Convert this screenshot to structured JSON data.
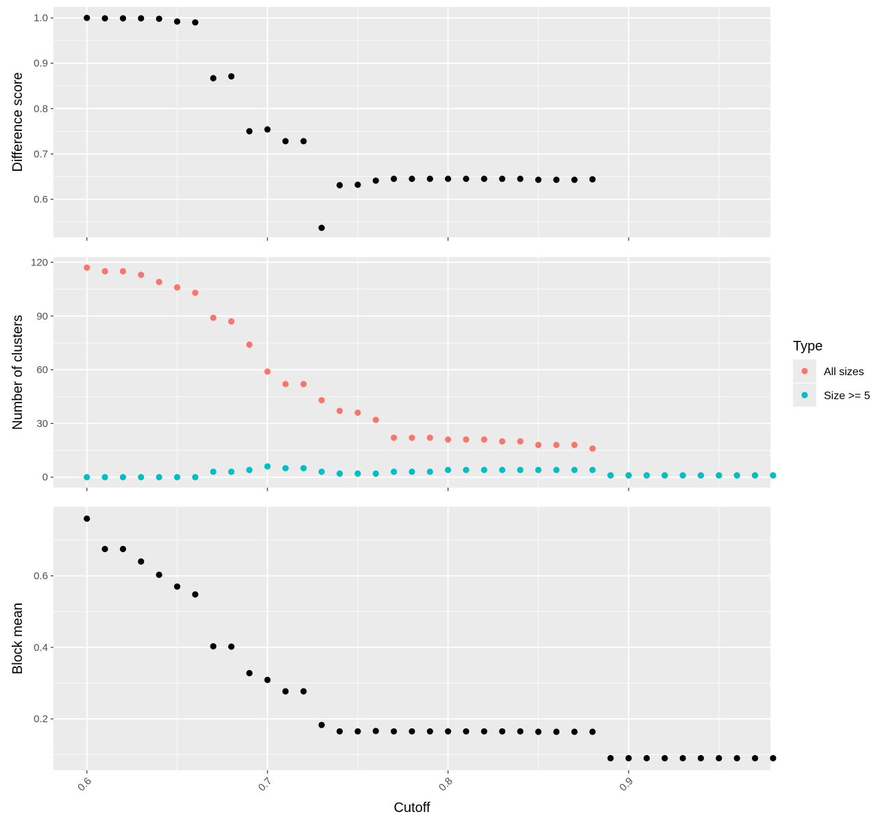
{
  "colors": {
    "panel_bg": "#EBEBEB",
    "grid": "#FFFFFF",
    "tick_text": "#4D4D4D",
    "axis_title": "#000000",
    "point_black": "#000000",
    "all_sizes": "#F8766D",
    "size_ge_5": "#00BFC4"
  },
  "chart_data": [
    {
      "type": "scatter",
      "panel": "top",
      "ylabel": "Difference score",
      "xlim": [
        0.5815,
        0.9785
      ],
      "ylim": [
        0.5161,
        1.0243
      ],
      "x_ticks": [
        0.6,
        0.7,
        0.8,
        0.9
      ],
      "y_ticks": [
        0.6,
        0.7,
        0.8,
        0.9,
        1.0
      ],
      "y_tick_labels": [
        "0.6",
        "0.7",
        "0.8",
        "0.9",
        "1.0"
      ],
      "grid": true,
      "series": [
        {
          "color": "#000000",
          "x": [
            0.6,
            0.61,
            0.62,
            0.63,
            0.64,
            0.65,
            0.66,
            0.67,
            0.68,
            0.69,
            0.7,
            0.71,
            0.72,
            0.73,
            0.74,
            0.75,
            0.76,
            0.77,
            0.78,
            0.79,
            0.8,
            0.81,
            0.82,
            0.83,
            0.84,
            0.85,
            0.86,
            0.87,
            0.88
          ],
          "y": [
            1.0,
            0.999,
            0.999,
            0.999,
            0.998,
            0.992,
            0.99,
            0.867,
            0.871,
            0.75,
            0.754,
            0.728,
            0.728,
            0.537,
            0.631,
            0.632,
            0.641,
            0.645,
            0.645,
            0.645,
            0.645,
            0.645,
            0.645,
            0.645,
            0.645,
            0.643,
            0.643,
            0.643,
            0.644
          ]
        }
      ]
    },
    {
      "type": "scatter",
      "panel": "middle",
      "ylabel": "Number of clusters",
      "xlim": [
        0.5815,
        0.9785
      ],
      "ylim": [
        -5.85,
        122.85
      ],
      "x_ticks": [
        0.6,
        0.7,
        0.8,
        0.9
      ],
      "y_ticks": [
        0,
        30,
        60,
        90,
        120
      ],
      "y_tick_labels": [
        "0",
        "30",
        "60",
        "90",
        "120"
      ],
      "grid": true,
      "legend": {
        "title": "Type",
        "position": "right",
        "entries": [
          {
            "label": "All sizes",
            "color": "#F8766D"
          },
          {
            "label": "Size >= 5",
            "color": "#00BFC4"
          }
        ]
      },
      "series": [
        {
          "name": "All sizes",
          "color": "#F8766D",
          "x": [
            0.6,
            0.61,
            0.62,
            0.63,
            0.64,
            0.65,
            0.66,
            0.67,
            0.68,
            0.69,
            0.7,
            0.71,
            0.72,
            0.73,
            0.74,
            0.75,
            0.76,
            0.77,
            0.78,
            0.79,
            0.8,
            0.81,
            0.82,
            0.83,
            0.84,
            0.85,
            0.86,
            0.87,
            0.88,
            0.89,
            0.9,
            0.91,
            0.92,
            0.93,
            0.94,
            0.95,
            0.96,
            0.97,
            0.98
          ],
          "y": [
            117,
            115,
            115,
            113,
            109,
            106,
            103,
            89,
            87,
            74,
            59,
            52,
            52,
            43,
            37,
            36,
            32,
            22,
            22,
            22,
            21,
            21,
            21,
            20,
            20,
            18,
            18,
            18,
            16,
            1,
            1,
            1,
            1,
            1,
            1,
            1,
            1,
            1,
            1
          ]
        },
        {
          "name": "Size >= 5",
          "color": "#00BFC4",
          "x": [
            0.6,
            0.61,
            0.62,
            0.63,
            0.64,
            0.65,
            0.66,
            0.67,
            0.68,
            0.69,
            0.7,
            0.71,
            0.72,
            0.73,
            0.74,
            0.75,
            0.76,
            0.77,
            0.78,
            0.79,
            0.8,
            0.81,
            0.82,
            0.83,
            0.84,
            0.85,
            0.86,
            0.87,
            0.88,
            0.89,
            0.9,
            0.91,
            0.92,
            0.93,
            0.94,
            0.95,
            0.96,
            0.97,
            0.98
          ],
          "y": [
            0,
            0,
            0,
            0,
            0,
            0,
            0,
            3,
            3,
            4,
            6,
            5,
            5,
            3,
            2,
            2,
            2,
            3,
            3,
            3,
            4,
            4,
            4,
            4,
            4,
            4,
            4,
            4,
            4,
            1,
            1,
            1,
            1,
            1,
            1,
            1,
            1,
            1,
            1
          ]
        }
      ]
    },
    {
      "type": "scatter",
      "panel": "bottom",
      "ylabel": "Block mean",
      "xlabel": "Cutoff",
      "xlim": [
        0.5815,
        0.9785
      ],
      "ylim": [
        0.0565,
        0.793
      ],
      "x_ticks": [
        0.6,
        0.7,
        0.8,
        0.9
      ],
      "x_tick_labels": [
        "0.6",
        "0.7",
        "0.8",
        "0.9"
      ],
      "y_ticks": [
        0.2,
        0.4,
        0.6
      ],
      "y_tick_labels": [
        "0.2",
        "0.4",
        "0.6"
      ],
      "grid": true,
      "series": [
        {
          "color": "#000000",
          "x": [
            0.6,
            0.61,
            0.62,
            0.63,
            0.64,
            0.65,
            0.66,
            0.67,
            0.68,
            0.69,
            0.7,
            0.71,
            0.72,
            0.73,
            0.74,
            0.75,
            0.76,
            0.77,
            0.78,
            0.79,
            0.8,
            0.81,
            0.82,
            0.83,
            0.84,
            0.85,
            0.86,
            0.87,
            0.88,
            0.89,
            0.9,
            0.91,
            0.92,
            0.93,
            0.94,
            0.95,
            0.96,
            0.97,
            0.98
          ],
          "y": [
            0.76,
            0.675,
            0.675,
            0.64,
            0.603,
            0.57,
            0.548,
            0.403,
            0.402,
            0.328,
            0.309,
            0.277,
            0.277,
            0.183,
            0.165,
            0.165,
            0.166,
            0.165,
            0.165,
            0.165,
            0.165,
            0.165,
            0.165,
            0.165,
            0.165,
            0.164,
            0.164,
            0.164,
            0.164,
            0.09,
            0.09,
            0.09,
            0.09,
            0.09,
            0.09,
            0.09,
            0.09,
            0.09,
            0.09
          ]
        }
      ]
    }
  ]
}
